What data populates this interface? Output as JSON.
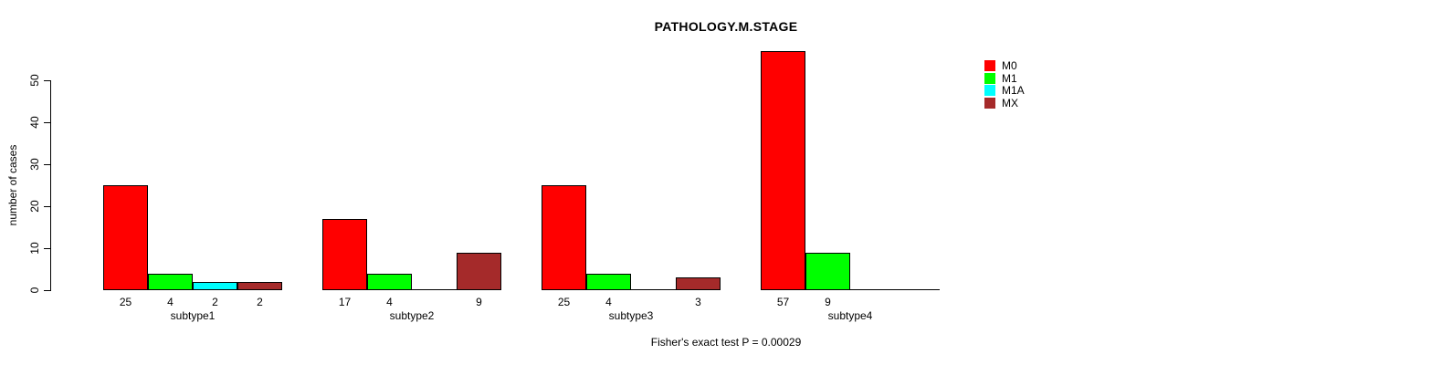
{
  "chart_data": {
    "type": "bar",
    "title": "PATHOLOGY.M.STAGE",
    "ylabel": "number of cases",
    "xlabel": "",
    "yticks": [
      0,
      10,
      20,
      30,
      40,
      50
    ],
    "ylim": [
      0,
      57
    ],
    "grid": false,
    "legend_position": "top-right",
    "categories": [
      "subtype1",
      "subtype2",
      "subtype3",
      "subtype4"
    ],
    "series": [
      {
        "name": "M0",
        "color": "#ff0000",
        "values": [
          25,
          17,
          25,
          57
        ]
      },
      {
        "name": "M1",
        "color": "#00ff00",
        "values": [
          4,
          4,
          4,
          9
        ]
      },
      {
        "name": "M1A",
        "color": "#00ffff",
        "values": [
          2,
          0,
          0,
          0
        ]
      },
      {
        "name": "MX",
        "color": "#a52a2a",
        "values": [
          2,
          9,
          3,
          0
        ]
      }
    ],
    "bar_value_labels_shown": true,
    "annotation": "Fisher's exact test P = 0.00029"
  }
}
